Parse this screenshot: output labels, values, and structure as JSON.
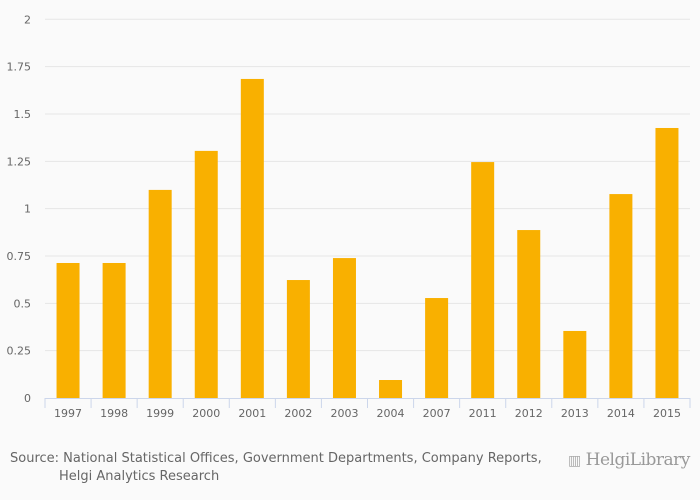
{
  "chart_data": {
    "type": "bar",
    "title": "",
    "xlabel": "",
    "ylabel": "",
    "categories": [
      "1997",
      "1998",
      "1999",
      "2000",
      "2001",
      "2002",
      "2003",
      "2004",
      "2007",
      "2011",
      "2012",
      "2013",
      "2014",
      "2015"
    ],
    "values": [
      0.713,
      0.713,
      1.099,
      1.305,
      1.685,
      0.623,
      0.739,
      0.095,
      0.528,
      1.246,
      0.887,
      0.354,
      1.077,
      1.426
    ],
    "ylim": [
      0,
      2
    ],
    "yticks": [
      "0",
      "0.25",
      "0.5",
      "0.75",
      "1",
      "1.25",
      "1.5",
      "1.75",
      "2"
    ],
    "grid": true,
    "bar_color": "#f9b000"
  },
  "source": {
    "line1": "Source: National Statistical Offices, Government Departments, Company Reports,",
    "line2": "Helgi Analytics Research"
  },
  "logo": {
    "text": "HelgiLibrary"
  }
}
